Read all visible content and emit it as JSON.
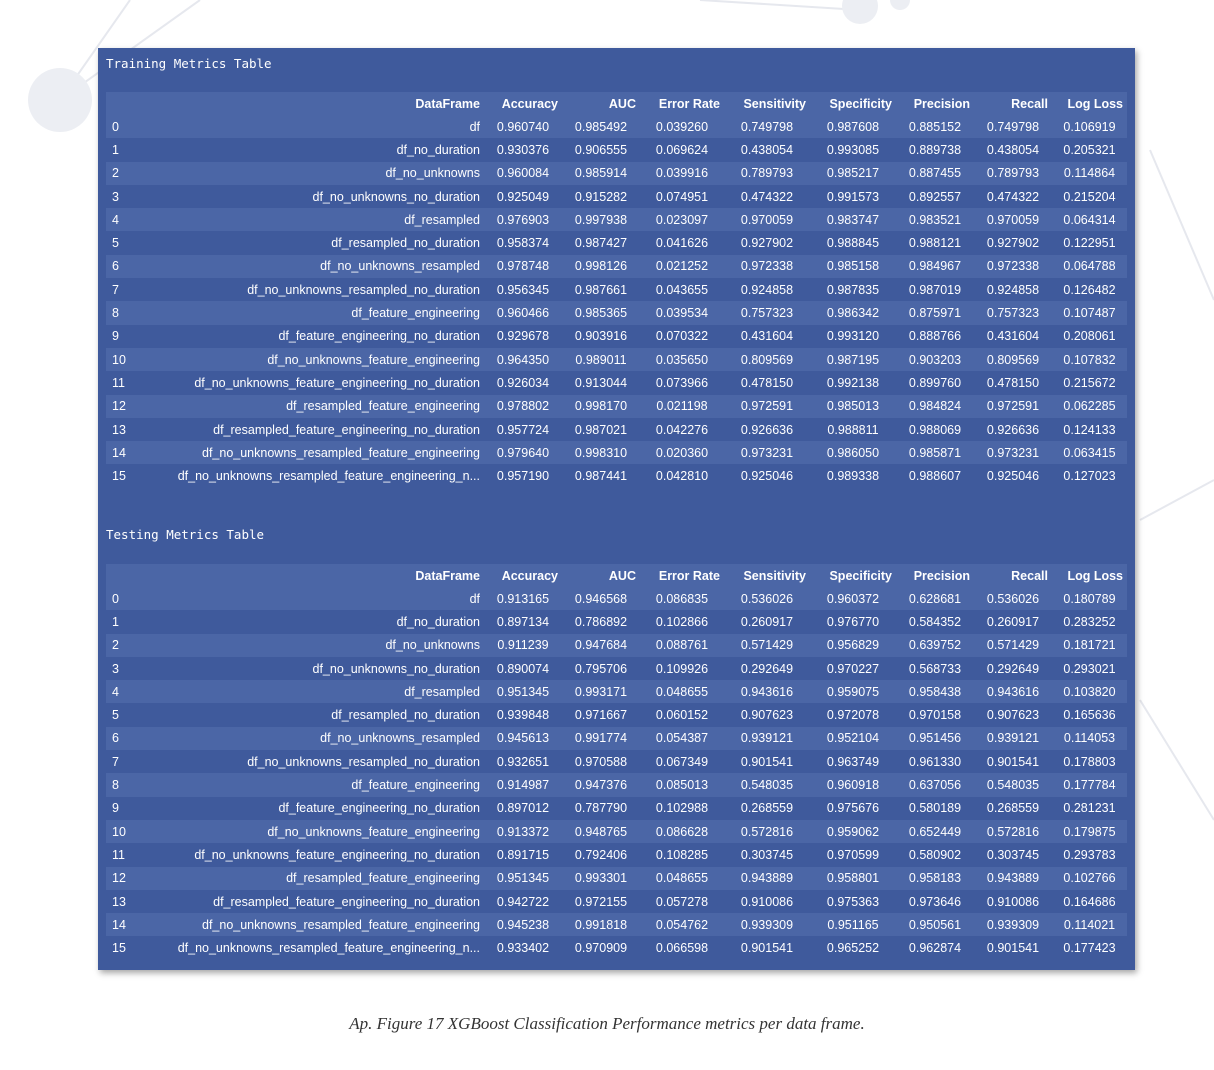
{
  "columns": [
    "",
    "DataFrame",
    "Accuracy",
    "AUC",
    "Error Rate",
    "Sensitivity",
    "Specificity",
    "Precision",
    "Recall",
    "Log Loss"
  ],
  "training": {
    "title": "Training Metrics Table",
    "rows": [
      [
        "0",
        "df",
        "0.960740",
        "0.985492",
        "0.039260",
        "0.749798",
        "0.987608",
        "0.885152",
        "0.749798",
        "0.106919"
      ],
      [
        "1",
        "df_no_duration",
        "0.930376",
        "0.906555",
        "0.069624",
        "0.438054",
        "0.993085",
        "0.889738",
        "0.438054",
        "0.205321"
      ],
      [
        "2",
        "df_no_unknowns",
        "0.960084",
        "0.985914",
        "0.039916",
        "0.789793",
        "0.985217",
        "0.887455",
        "0.789793",
        "0.114864"
      ],
      [
        "3",
        "df_no_unknowns_no_duration",
        "0.925049",
        "0.915282",
        "0.074951",
        "0.474322",
        "0.991573",
        "0.892557",
        "0.474322",
        "0.215204"
      ],
      [
        "4",
        "df_resampled",
        "0.976903",
        "0.997938",
        "0.023097",
        "0.970059",
        "0.983747",
        "0.983521",
        "0.970059",
        "0.064314"
      ],
      [
        "5",
        "df_resampled_no_duration",
        "0.958374",
        "0.987427",
        "0.041626",
        "0.927902",
        "0.988845",
        "0.988121",
        "0.927902",
        "0.122951"
      ],
      [
        "6",
        "df_no_unknowns_resampled",
        "0.978748",
        "0.998126",
        "0.021252",
        "0.972338",
        "0.985158",
        "0.984967",
        "0.972338",
        "0.064788"
      ],
      [
        "7",
        "df_no_unknowns_resampled_no_duration",
        "0.956345",
        "0.987661",
        "0.043655",
        "0.924858",
        "0.987835",
        "0.987019",
        "0.924858",
        "0.126482"
      ],
      [
        "8",
        "df_feature_engineering",
        "0.960466",
        "0.985365",
        "0.039534",
        "0.757323",
        "0.986342",
        "0.875971",
        "0.757323",
        "0.107487"
      ],
      [
        "9",
        "df_feature_engineering_no_duration",
        "0.929678",
        "0.903916",
        "0.070322",
        "0.431604",
        "0.993120",
        "0.888766",
        "0.431604",
        "0.208061"
      ],
      [
        "10",
        "df_no_unknowns_feature_engineering",
        "0.964350",
        "0.989011",
        "0.035650",
        "0.809569",
        "0.987195",
        "0.903203",
        "0.809569",
        "0.107832"
      ],
      [
        "11",
        "df_no_unknowns_feature_engineering_no_duration",
        "0.926034",
        "0.913044",
        "0.073966",
        "0.478150",
        "0.992138",
        "0.899760",
        "0.478150",
        "0.215672"
      ],
      [
        "12",
        "df_resampled_feature_engineering",
        "0.978802",
        "0.998170",
        "0.021198",
        "0.972591",
        "0.985013",
        "0.984824",
        "0.972591",
        "0.062285"
      ],
      [
        "13",
        "df_resampled_feature_engineering_no_duration",
        "0.957724",
        "0.987021",
        "0.042276",
        "0.926636",
        "0.988811",
        "0.988069",
        "0.926636",
        "0.124133"
      ],
      [
        "14",
        "df_no_unknowns_resampled_feature_engineering",
        "0.979640",
        "0.998310",
        "0.020360",
        "0.973231",
        "0.986050",
        "0.985871",
        "0.973231",
        "0.063415"
      ],
      [
        "15",
        "df_no_unknowns_resampled_feature_engineering_n...",
        "0.957190",
        "0.987441",
        "0.042810",
        "0.925046",
        "0.989338",
        "0.988607",
        "0.925046",
        "0.127023"
      ]
    ]
  },
  "testing": {
    "title": "Testing Metrics Table",
    "rows": [
      [
        "0",
        "df",
        "0.913165",
        "0.946568",
        "0.086835",
        "0.536026",
        "0.960372",
        "0.628681",
        "0.536026",
        "0.180789"
      ],
      [
        "1",
        "df_no_duration",
        "0.897134",
        "0.786892",
        "0.102866",
        "0.260917",
        "0.976770",
        "0.584352",
        "0.260917",
        "0.283252"
      ],
      [
        "2",
        "df_no_unknowns",
        "0.911239",
        "0.947684",
        "0.088761",
        "0.571429",
        "0.956829",
        "0.639752",
        "0.571429",
        "0.181721"
      ],
      [
        "3",
        "df_no_unknowns_no_duration",
        "0.890074",
        "0.795706",
        "0.109926",
        "0.292649",
        "0.970227",
        "0.568733",
        "0.292649",
        "0.293021"
      ],
      [
        "4",
        "df_resampled",
        "0.951345",
        "0.993171",
        "0.048655",
        "0.943616",
        "0.959075",
        "0.958438",
        "0.943616",
        "0.103820"
      ],
      [
        "5",
        "df_resampled_no_duration",
        "0.939848",
        "0.971667",
        "0.060152",
        "0.907623",
        "0.972078",
        "0.970158",
        "0.907623",
        "0.165636"
      ],
      [
        "6",
        "df_no_unknowns_resampled",
        "0.945613",
        "0.991774",
        "0.054387",
        "0.939121",
        "0.952104",
        "0.951456",
        "0.939121",
        "0.114053"
      ],
      [
        "7",
        "df_no_unknowns_resampled_no_duration",
        "0.932651",
        "0.970588",
        "0.067349",
        "0.901541",
        "0.963749",
        "0.961330",
        "0.901541",
        "0.178803"
      ],
      [
        "8",
        "df_feature_engineering",
        "0.914987",
        "0.947376",
        "0.085013",
        "0.548035",
        "0.960918",
        "0.637056",
        "0.548035",
        "0.177784"
      ],
      [
        "9",
        "df_feature_engineering_no_duration",
        "0.897012",
        "0.787790",
        "0.102988",
        "0.268559",
        "0.975676",
        "0.580189",
        "0.268559",
        "0.281231"
      ],
      [
        "10",
        "df_no_unknowns_feature_engineering",
        "0.913372",
        "0.948765",
        "0.086628",
        "0.572816",
        "0.959062",
        "0.652449",
        "0.572816",
        "0.179875"
      ],
      [
        "11",
        "df_no_unknowns_feature_engineering_no_duration",
        "0.891715",
        "0.792406",
        "0.108285",
        "0.303745",
        "0.970599",
        "0.580902",
        "0.303745",
        "0.293783"
      ],
      [
        "12",
        "df_resampled_feature_engineering",
        "0.951345",
        "0.993301",
        "0.048655",
        "0.943889",
        "0.958801",
        "0.958183",
        "0.943889",
        "0.102766"
      ],
      [
        "13",
        "df_resampled_feature_engineering_no_duration",
        "0.942722",
        "0.972155",
        "0.057278",
        "0.910086",
        "0.975363",
        "0.973646",
        "0.910086",
        "0.164686"
      ],
      [
        "14",
        "df_no_unknowns_resampled_feature_engineering",
        "0.945238",
        "0.991818",
        "0.054762",
        "0.939309",
        "0.951165",
        "0.950561",
        "0.939309",
        "0.114021"
      ],
      [
        "15",
        "df_no_unknowns_resampled_feature_engineering_n...",
        "0.933402",
        "0.970909",
        "0.066598",
        "0.901541",
        "0.965252",
        "0.962874",
        "0.901541",
        "0.177423"
      ]
    ]
  },
  "caption": "Ap. Figure 17 XGBoost Classification Performance metrics per data frame."
}
